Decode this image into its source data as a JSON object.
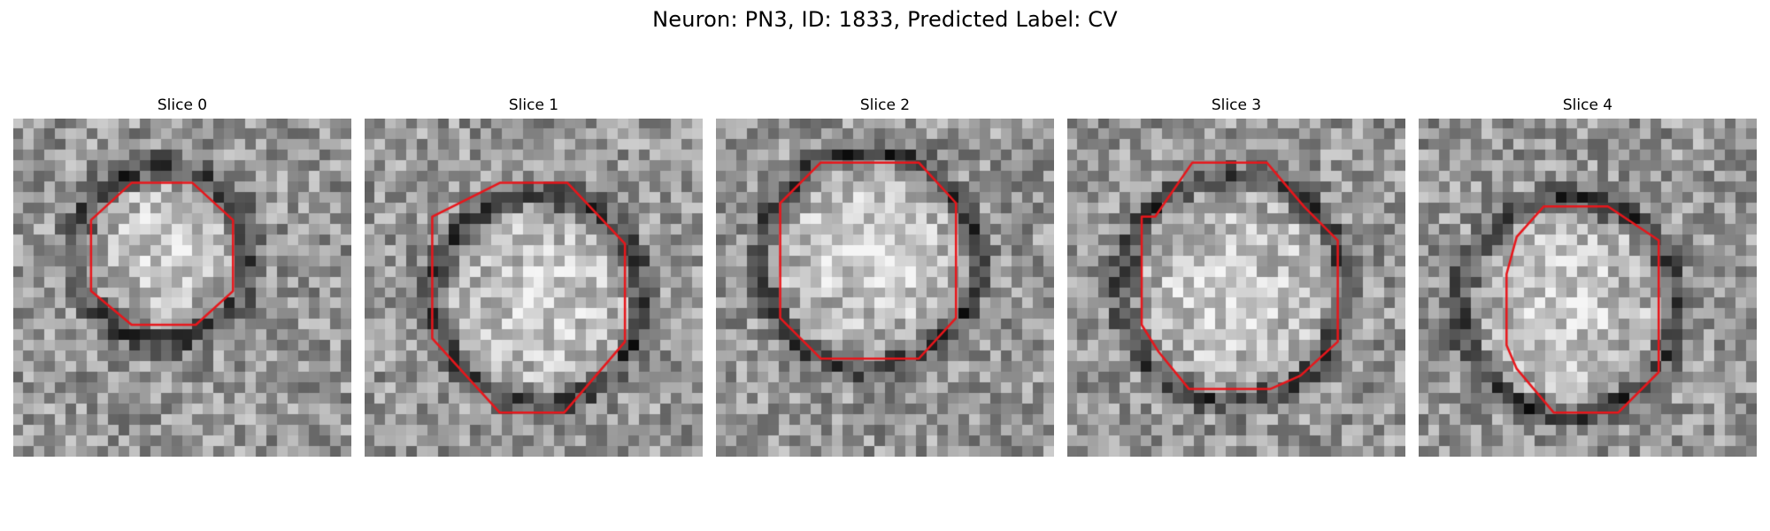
{
  "figure": {
    "title": "Neuron: PN3, ID: 1833, Predicted Label: CV"
  },
  "image_grid": {
    "colormap": "grayscale",
    "pixels_per_side": 32
  },
  "contour_color": "#e8161b",
  "slices": [
    {
      "title": "Slice 0",
      "blob_radius": 0.42,
      "ring_radius": 0.52,
      "contour": [
        [
          0.35,
          0.19
        ],
        [
          0.53,
          0.19
        ],
        [
          0.65,
          0.3
        ],
        [
          0.65,
          0.51
        ],
        [
          0.54,
          0.61
        ],
        [
          0.35,
          0.61
        ],
        [
          0.23,
          0.51
        ],
        [
          0.23,
          0.3
        ]
      ]
    },
    {
      "title": "Slice 1",
      "blob_radius": 0.55,
      "ring_radius": 0.62,
      "contour": [
        [
          0.4,
          0.19
        ],
        [
          0.6,
          0.19
        ],
        [
          0.77,
          0.37
        ],
        [
          0.77,
          0.66
        ],
        [
          0.71,
          0.73
        ],
        [
          0.59,
          0.87
        ],
        [
          0.4,
          0.87
        ],
        [
          0.2,
          0.65
        ],
        [
          0.2,
          0.29
        ]
      ]
    },
    {
      "title": "Slice 2",
      "blob_radius": 0.58,
      "ring_radius": 0.64,
      "contour": [
        [
          0.31,
          0.13
        ],
        [
          0.6,
          0.13
        ],
        [
          0.71,
          0.25
        ],
        [
          0.71,
          0.59
        ],
        [
          0.6,
          0.71
        ],
        [
          0.31,
          0.71
        ],
        [
          0.19,
          0.59
        ],
        [
          0.19,
          0.25
        ]
      ]
    },
    {
      "title": "Slice 3",
      "blob_radius": 0.6,
      "ring_radius": 0.66,
      "contour": [
        [
          0.37,
          0.13
        ],
        [
          0.59,
          0.13
        ],
        [
          0.7,
          0.26
        ],
        [
          0.8,
          0.36
        ],
        [
          0.8,
          0.66
        ],
        [
          0.69,
          0.76
        ],
        [
          0.6,
          0.8
        ],
        [
          0.51,
          0.8
        ],
        [
          0.36,
          0.8
        ],
        [
          0.27,
          0.69
        ],
        [
          0.22,
          0.61
        ],
        [
          0.22,
          0.29
        ],
        [
          0.26,
          0.29
        ]
      ]
    },
    {
      "title": "Slice 4",
      "blob_radius": 0.56,
      "ring_radius": 0.64,
      "contour": [
        [
          0.37,
          0.26
        ],
        [
          0.56,
          0.26
        ],
        [
          0.71,
          0.36
        ],
        [
          0.71,
          0.75
        ],
        [
          0.59,
          0.87
        ],
        [
          0.4,
          0.87
        ],
        [
          0.29,
          0.74
        ],
        [
          0.26,
          0.67
        ],
        [
          0.26,
          0.46
        ],
        [
          0.29,
          0.35
        ]
      ]
    }
  ]
}
